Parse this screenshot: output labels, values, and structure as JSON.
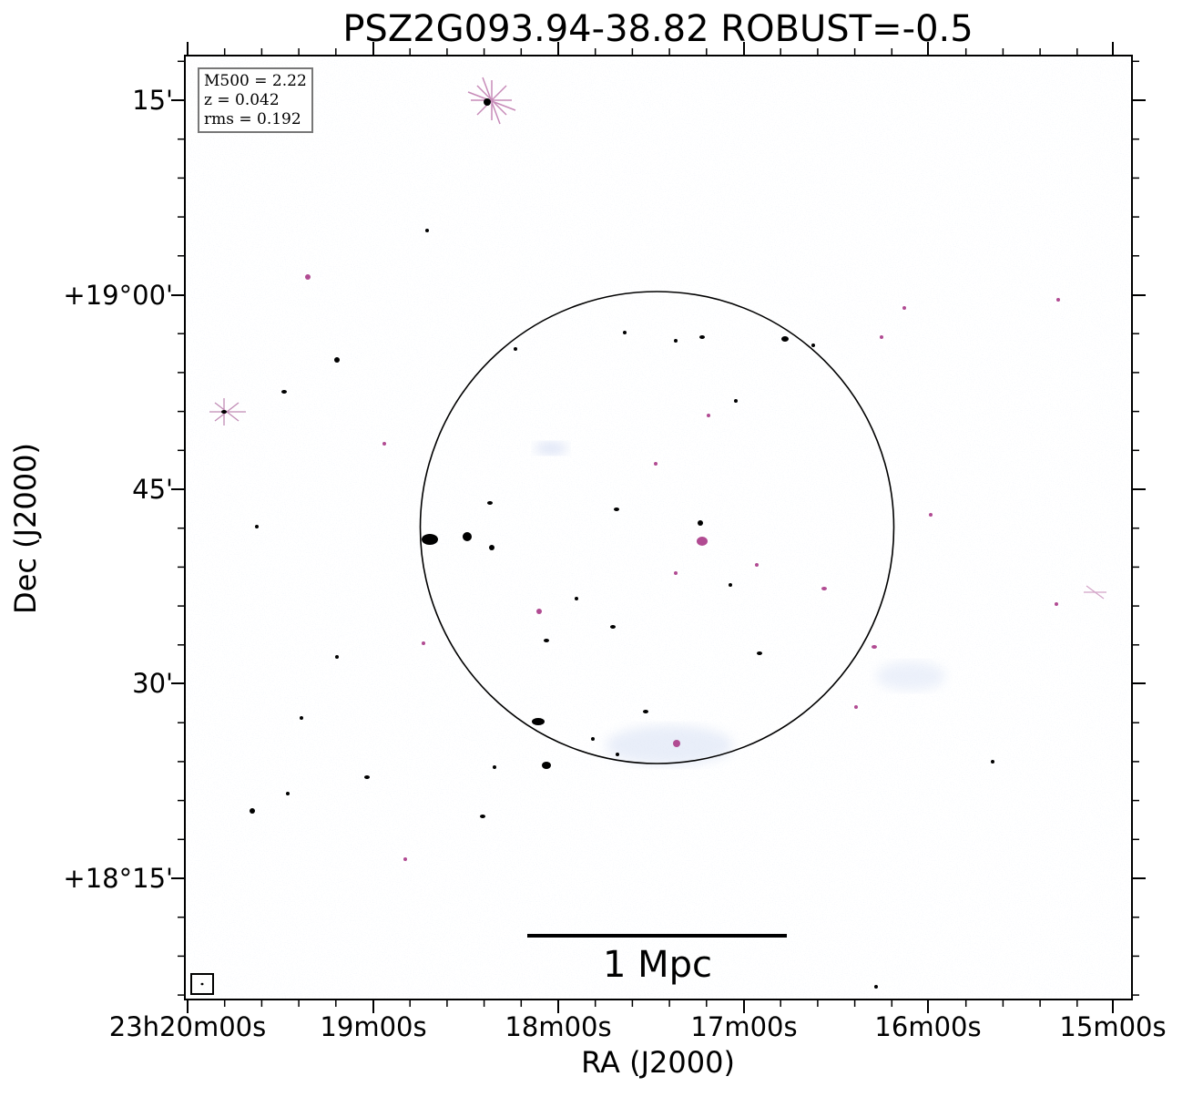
{
  "title": "PSZ2G093.94-38.82 ROBUST=-0.5",
  "axes": {
    "xlabel": "RA (J2000)",
    "ylabel": "Dec (J2000)",
    "xticks": [
      "23h20m00s",
      "19m00s",
      "18m00s",
      "17m00s",
      "16m00s",
      "15m00s"
    ],
    "yticks": [
      "15'",
      "+19°00'",
      "45'",
      "30'",
      "+18°15'"
    ]
  },
  "legend": {
    "m500": "M500 = 2.22",
    "z": "z = 0.042",
    "rms": "rms = 0.192"
  },
  "scalebar": {
    "label": "1 Mpc"
  },
  "colors": {
    "noise": "#8aa7dc",
    "emission": "#b14b92",
    "source": "#000000",
    "frame": "#000000"
  }
}
